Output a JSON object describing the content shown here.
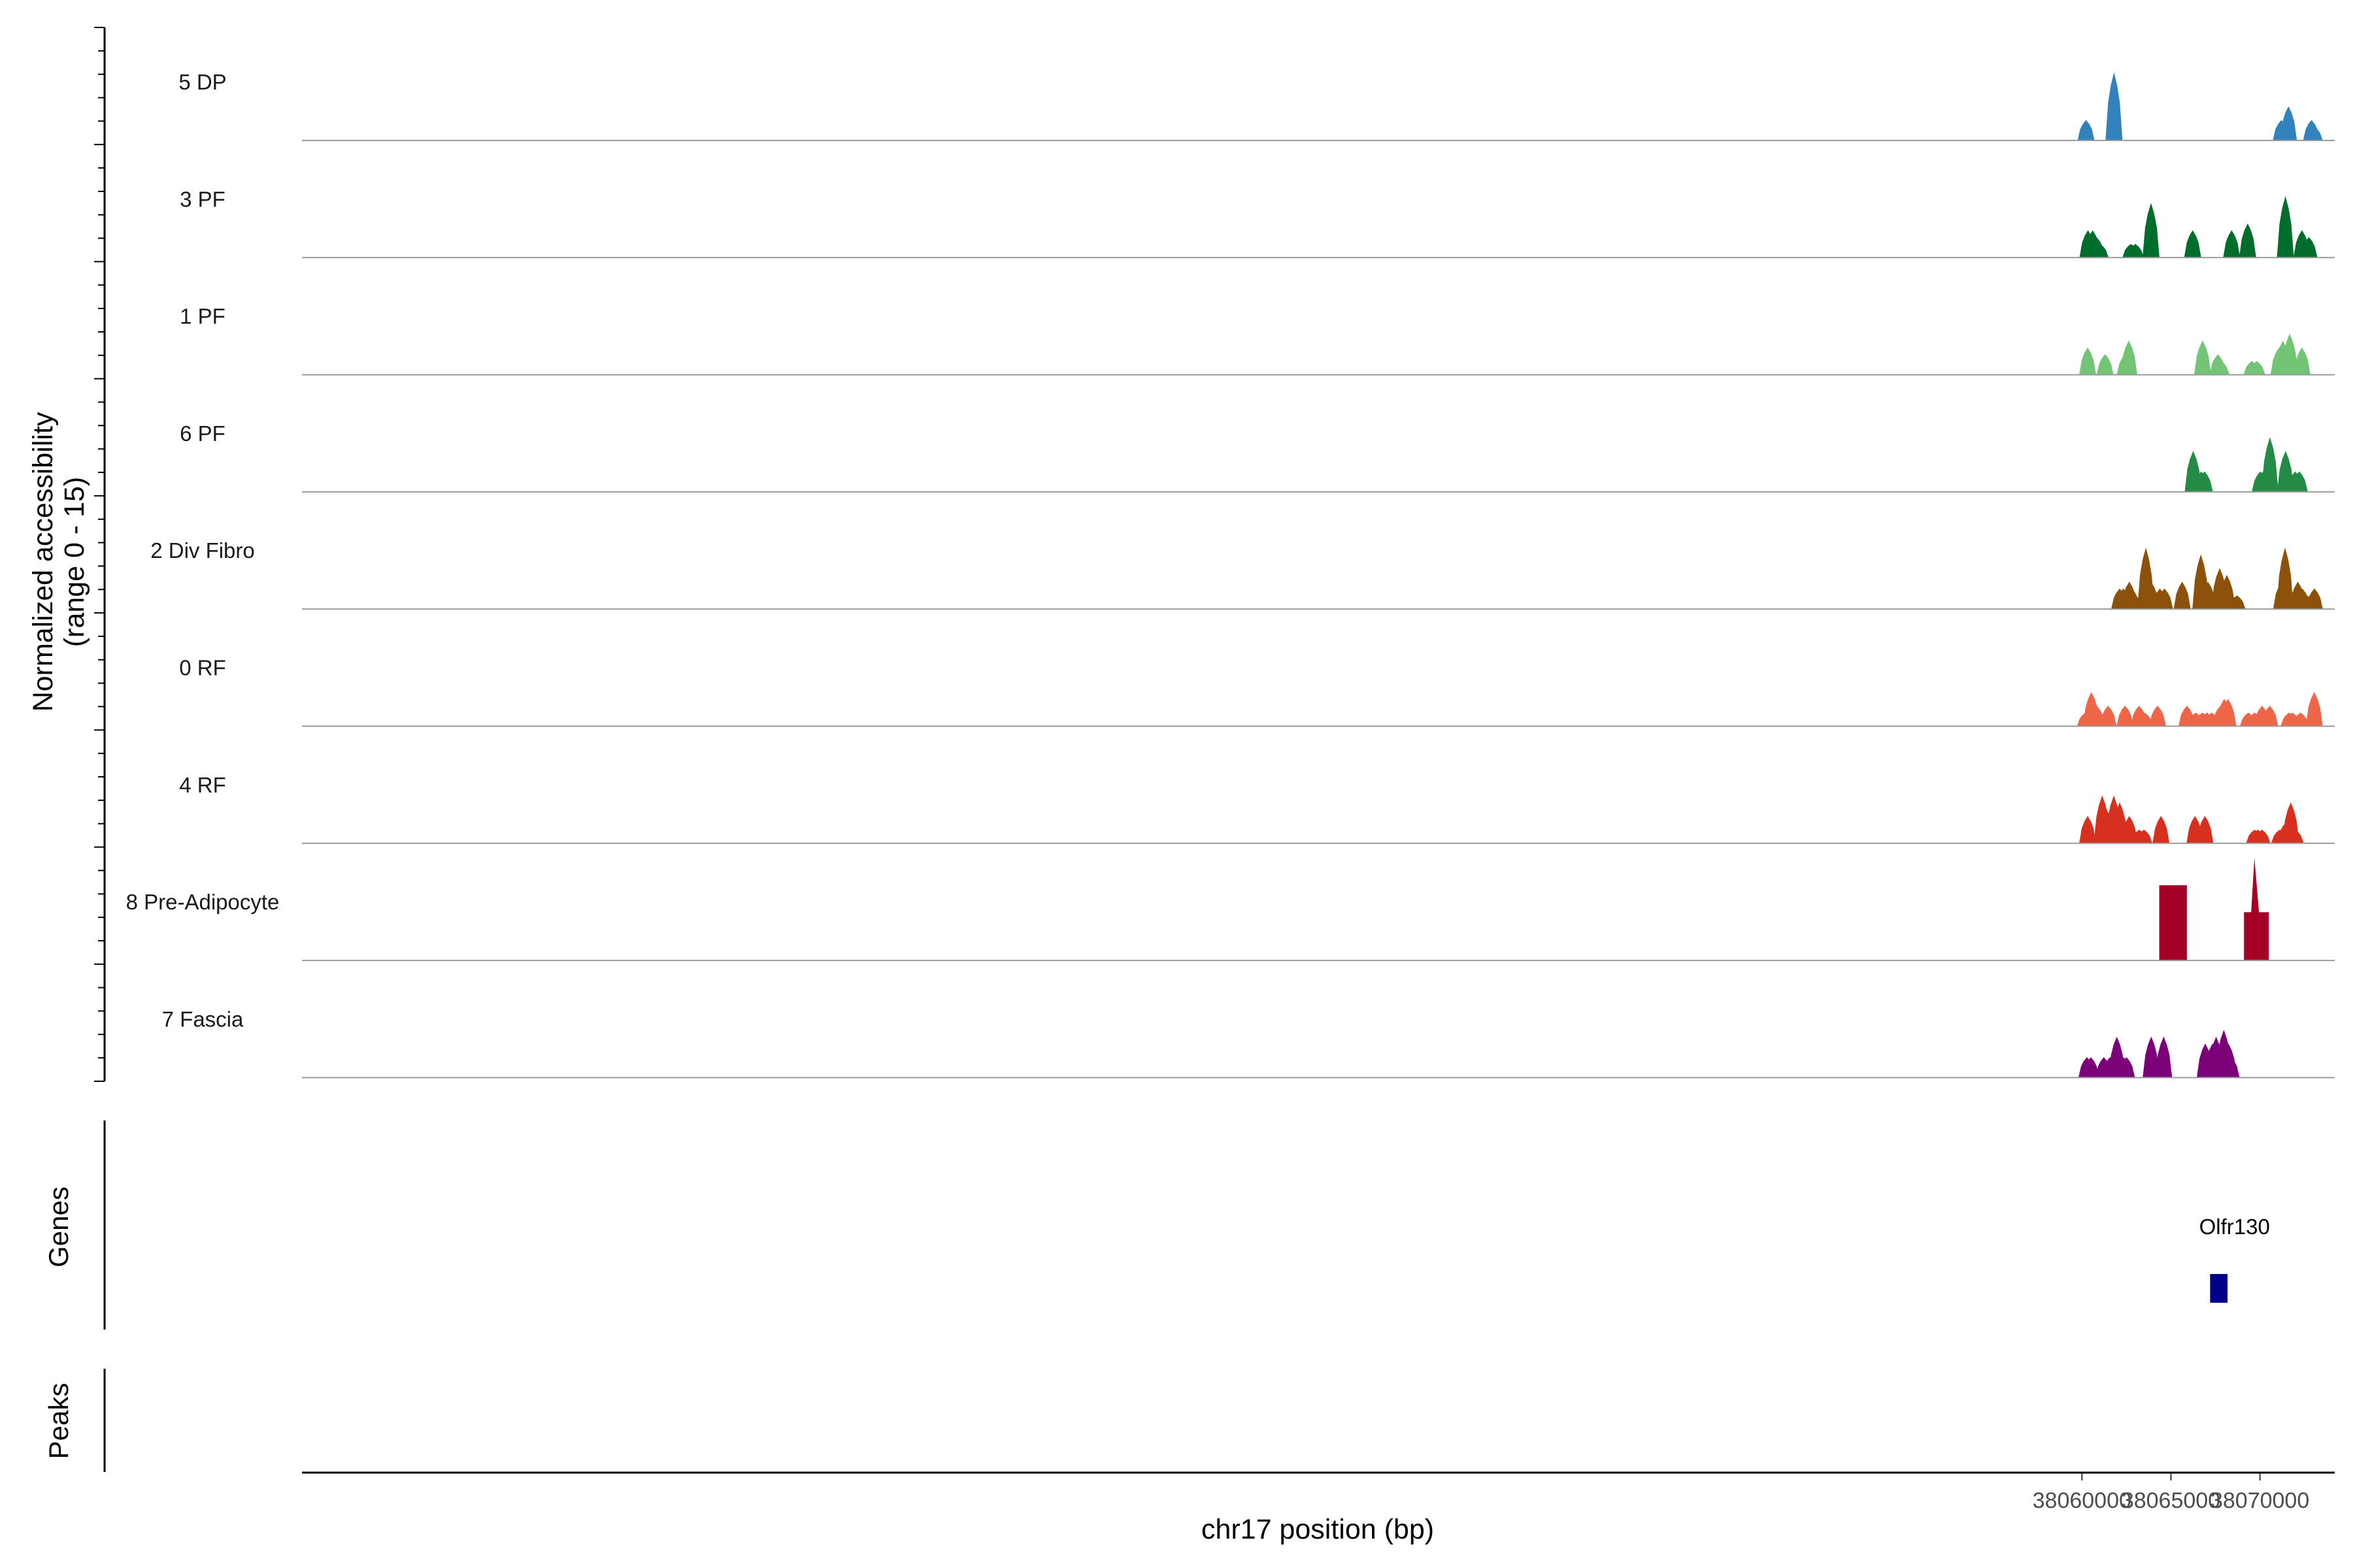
{
  "chart_data": {
    "type": "area",
    "xlabel": "chr17 position (bp)",
    "ylabel_line1": "Normalized accessibility",
    "ylabel_line2": "(range 0 - 15)",
    "ylim": [
      0,
      15
    ],
    "xlim": [
      37960000,
      38074200
    ],
    "x_ticks": [
      38060000,
      38065000,
      38070000
    ],
    "x_tick_labels": [
      "38060000",
      "38065000",
      "38070000"
    ],
    "genes_panel_title": "Genes",
    "peaks_panel_title": "Peaks",
    "genes": [
      {
        "name": "Olfr130",
        "start": 38067200,
        "end": 38068180,
        "color": "#00008B"
      }
    ],
    "series": [
      {
        "name": "5 DP",
        "color": "#3182BD",
        "peaks": [
          [
            38060230,
            3
          ],
          [
            38061800,
            10
          ],
          [
            38071200,
            3
          ],
          [
            38071400,
            3
          ],
          [
            38071600,
            5
          ],
          [
            38072900,
            3
          ],
          [
            38073050,
            2
          ]
        ]
      },
      {
        "name": "3 PF",
        "color": "#006D2C",
        "peaks": [
          [
            38060340,
            4
          ],
          [
            38060600,
            4
          ],
          [
            38060820,
            3
          ],
          [
            38061020,
            2
          ],
          [
            38062750,
            2
          ],
          [
            38063000,
            2
          ],
          [
            38063880,
            8
          ],
          [
            38066220,
            4
          ],
          [
            38068410,
            4
          ],
          [
            38069310,
            5
          ],
          [
            38071430,
            9
          ],
          [
            38072360,
            4
          ],
          [
            38072750,
            3
          ]
        ]
      },
      {
        "name": "1 PF",
        "color": "#74C476",
        "peaks": [
          [
            38060320,
            4
          ],
          [
            38061300,
            3
          ],
          [
            38062430,
            3
          ],
          [
            38062630,
            5
          ],
          [
            38066780,
            5
          ],
          [
            38067640,
            3
          ],
          [
            38067810,
            2
          ],
          [
            38069550,
            2
          ],
          [
            38069820,
            2
          ],
          [
            38071070,
            4
          ],
          [
            38071290,
            5
          ],
          [
            38071670,
            6
          ],
          [
            38072360,
            4
          ]
        ]
      },
      {
        "name": "6 PF",
        "color": "#238B45",
        "peaks": [
          [
            38066250,
            6
          ],
          [
            38066700,
            3
          ],
          [
            38066880,
            3
          ],
          [
            38070020,
            3
          ],
          [
            38070180,
            3
          ],
          [
            38070320,
            3
          ],
          [
            38070560,
            8
          ],
          [
            38071440,
            6
          ],
          [
            38071980,
            3
          ],
          [
            38072210,
            3
          ]
        ]
      },
      {
        "name": "2 Div Fibro",
        "color": "#8C510A",
        "peaks": [
          [
            38062120,
            3
          ],
          [
            38062320,
            3
          ],
          [
            38062520,
            3
          ],
          [
            38062660,
            4
          ],
          [
            38062800,
            3
          ],
          [
            38063280,
            2
          ],
          [
            38063590,
            9
          ],
          [
            38063880,
            4
          ],
          [
            38064380,
            3
          ],
          [
            38064640,
            3
          ],
          [
            38065630,
            4
          ],
          [
            38066680,
            8
          ],
          [
            38066910,
            4
          ],
          [
            38067080,
            4
          ],
          [
            38067740,
            6
          ],
          [
            38067920,
            3
          ],
          [
            38068140,
            5
          ],
          [
            38068420,
            2
          ],
          [
            38068710,
            2
          ],
          [
            38071220,
            4
          ],
          [
            38071410,
            9
          ],
          [
            38071640,
            3
          ],
          [
            38072130,
            4
          ],
          [
            38072380,
            3
          ],
          [
            38072650,
            2
          ],
          [
            38072900,
            2
          ],
          [
            38073060,
            3
          ]
        ]
      },
      {
        "name": "0 RF",
        "color": "#EF6548",
        "peaks": [
          [
            38060200,
            2
          ],
          [
            38060530,
            5
          ],
          [
            38060830,
            3
          ],
          [
            38061470,
            3
          ],
          [
            38062420,
            3
          ],
          [
            38063210,
            3
          ],
          [
            38063520,
            2
          ],
          [
            38064250,
            3
          ],
          [
            38065900,
            3
          ],
          [
            38066400,
            2
          ],
          [
            38066770,
            2
          ],
          [
            38067020,
            2
          ],
          [
            38067280,
            2
          ],
          [
            38067780,
            3
          ],
          [
            38068000,
            4
          ],
          [
            38068200,
            4
          ],
          [
            38069350,
            2
          ],
          [
            38069700,
            2
          ],
          [
            38070120,
            3
          ],
          [
            38070550,
            3
          ],
          [
            38071640,
            2
          ],
          [
            38071820,
            2
          ],
          [
            38072280,
            2
          ],
          [
            38073050,
            5
          ]
        ]
      },
      {
        "name": "4 RF",
        "color": "#D7301F",
        "peaks": [
          [
            38060320,
            4
          ],
          [
            38061140,
            7
          ],
          [
            38061380,
            5
          ],
          [
            38061600,
            4
          ],
          [
            38061790,
            7
          ],
          [
            38062120,
            6
          ],
          [
            38062660,
            4
          ],
          [
            38063220,
            2
          ],
          [
            38063480,
            2
          ],
          [
            38064440,
            4
          ],
          [
            38066350,
            4
          ],
          [
            38066910,
            4
          ],
          [
            38069700,
            2
          ],
          [
            38069880,
            2
          ],
          [
            38070110,
            2
          ],
          [
            38071110,
            2
          ],
          [
            38071440,
            3
          ],
          [
            38071730,
            6
          ],
          [
            38071980,
            2
          ]
        ]
      },
      {
        "name": "8 Pre-Adipocyte",
        "color": "#A50026",
        "peaks": [
          [
            38065040,
            11
          ],
          [
            38065200,
            11
          ],
          [
            38069800,
            15
          ]
        ]
      },
      {
        "name": "7 Fascia",
        "color": "#7A0177",
        "peaks": [
          [
            38060280,
            3
          ],
          [
            38060500,
            3
          ],
          [
            38061230,
            3
          ],
          [
            38061570,
            3
          ],
          [
            38061960,
            6
          ],
          [
            38062340,
            3
          ],
          [
            38062500,
            3
          ],
          [
            38063890,
            6
          ],
          [
            38064590,
            6
          ],
          [
            38066930,
            5
          ],
          [
            38067080,
            3
          ],
          [
            38067330,
            5
          ],
          [
            38067540,
            6
          ],
          [
            38067780,
            5
          ],
          [
            38067970,
            7
          ],
          [
            38068230,
            5
          ],
          [
            38068380,
            3
          ]
        ]
      }
    ]
  }
}
